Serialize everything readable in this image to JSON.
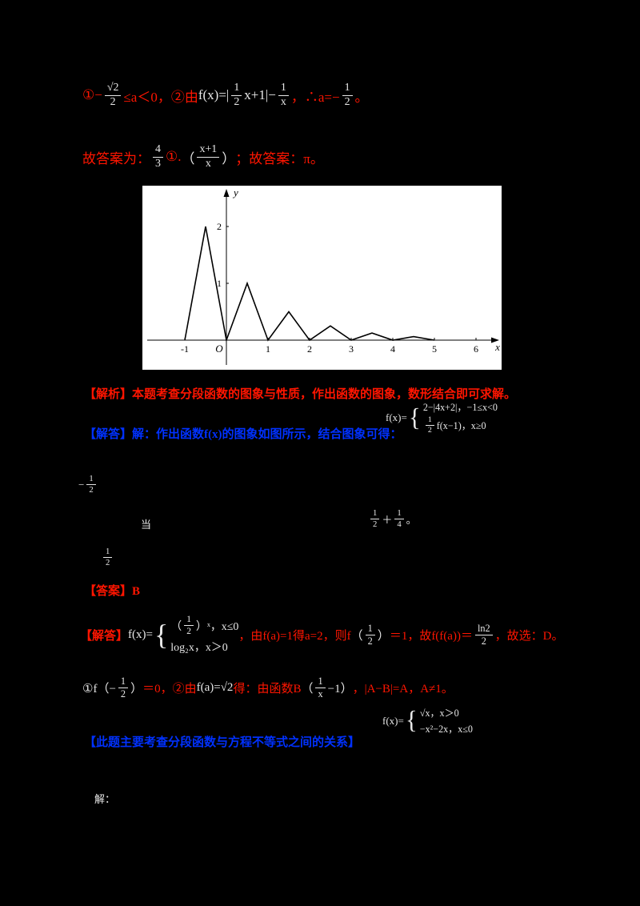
{
  "colors": {
    "red": "#ff1500",
    "blue": "#0031ff",
    "white": "#e8e8e8",
    "panel": "#ffffff",
    "axis": "#000000"
  },
  "line1": {
    "r1": "①−",
    "f1n": "√2",
    "f1d": "2",
    "r2": "≤a＜0，②由",
    "w1": "f(x)=|",
    "f2n": "1",
    "f2d": "2",
    "w2": "x+1|−",
    "f3n": "1",
    "f3d": "x",
    "r3": "，∴a=−",
    "f4n": "1",
    "f4d": "2",
    "r4": "。"
  },
  "line2": {
    "r1": "故答案为：",
    "f1n": "4",
    "f1d": "3",
    "r2": "①.",
    "w1": "（",
    "f2n": "x+1",
    "f2d": "x",
    "w2": "）",
    "r3": "；故答案：π。"
  },
  "chart_data": {
    "type": "line",
    "title": "",
    "xlabel": "x",
    "ylabel": "y",
    "origin_label": "O",
    "x_ticks": [
      -1,
      1,
      2,
      3,
      4,
      5,
      6
    ],
    "y_ticks": [
      1,
      2
    ],
    "xlim": [
      -1.8,
      6.5
    ],
    "ylim": [
      0,
      2.6
    ],
    "grid": false,
    "points": [
      [
        -1,
        0
      ],
      [
        -0.5,
        2
      ],
      [
        0,
        0
      ],
      [
        0.5,
        1
      ],
      [
        1,
        0
      ],
      [
        1.5,
        0.5
      ],
      [
        2,
        0
      ],
      [
        2.5,
        0.25
      ],
      [
        3,
        0
      ],
      [
        3.5,
        0.125
      ],
      [
        4,
        0
      ],
      [
        4.5,
        0.0625
      ],
      [
        5,
        0
      ]
    ]
  },
  "analysis1": "【解析】本题考查分段函数的图象与性质，作出函数的图象，数形结合即可求解。",
  "blue1": "【解答】解：作出函数f(x)的图象如图所示，结合图象可得：",
  "pw1": {
    "label": "f(x)=",
    "row1": "2−|4x+2|，−1≤x<0",
    "row2fn": "1",
    "row2fd": "2",
    "row2t": "f(x−1)，x≥0"
  },
  "frag1": {
    "w": "−",
    "fn": "1",
    "fd": "2"
  },
  "frag2a": "当",
  "frag2b": {
    "f1n": "1",
    "f1d": "2",
    "t1": "＋",
    "f2n": "1",
    "f2d": "4",
    "t2": "。"
  },
  "frag3": {
    "fn": "1",
    "fd": "2"
  },
  "answer_red": "【答案】B",
  "solve": {
    "r1": "【解答】",
    "w1": "f(x)=",
    "pwrow1a": "（",
    "pwr1fn": "1",
    "pwr1fd": "2",
    "pwrow1b": "）ˣ，x≤0",
    "pwrow2": "log₂x，x＞0",
    "r2": "，由f(a)=1得a=2，则f",
    "w2": "（",
    "f1n": "1",
    "f1d": "2",
    "w3": "）",
    "r3": "＝1，故f(f(a))＝",
    "f2n": "ln2",
    "f2d": "2",
    "r4": "，故选：D。"
  },
  "line855": {
    "w1": "①f（−",
    "f1n": "1",
    "f1d": "2",
    "w2": "）",
    "r1": "＝0，②由",
    "w3": "f(a)=√2",
    "r2": "得：由函数B",
    "w4": "（",
    "f2n": "1",
    "f2d": "x",
    "w5": "−1）",
    "r3": "，|A−B|=A，A≠1。"
  },
  "blue2": "【此题主要考查分段函数与方程不等式之间的关系】",
  "pw2": {
    "label": "f(x)=",
    "row1": "√x，x＞0",
    "row2": "−x²−2x，x≤0"
  },
  "frag4": "解："
}
